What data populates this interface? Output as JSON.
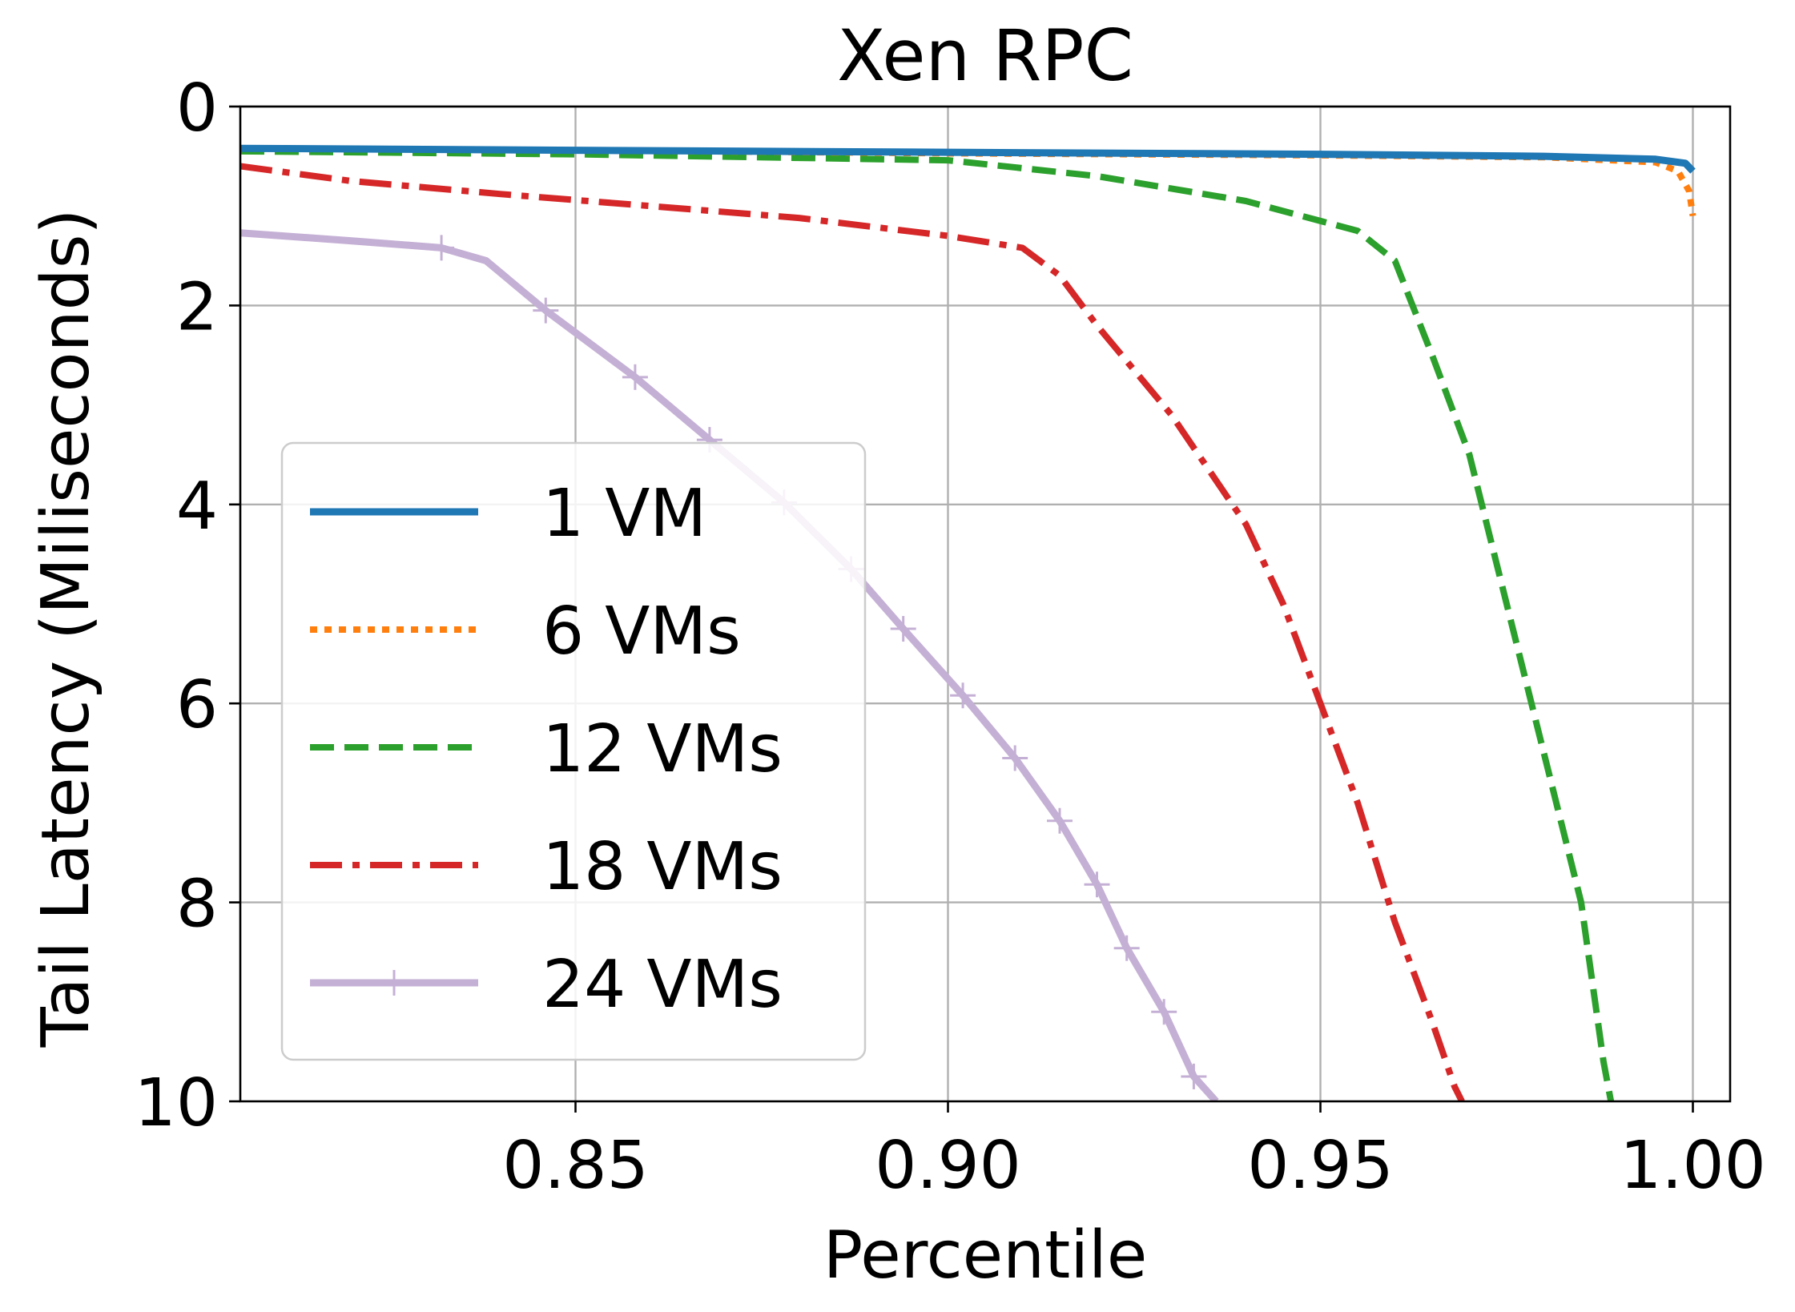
{
  "chart_data": {
    "type": "line",
    "title": "Xen RPC",
    "xlabel": "Percentile",
    "ylabel": "Tail Latency (Miliseconds)",
    "xlim": [
      0.805,
      1.005
    ],
    "ylim": [
      10,
      0
    ],
    "y_inverted": true,
    "grid": true,
    "legend_position": "center-left",
    "x_ticks": [
      0.85,
      0.9,
      0.95,
      1.0
    ],
    "x_tick_labels": [
      "0.85",
      "0.90",
      "0.95",
      "1.00"
    ],
    "y_ticks": [
      0,
      2,
      4,
      6,
      8,
      10
    ],
    "y_tick_labels": [
      "0",
      "2",
      "4",
      "6",
      "8",
      "10"
    ],
    "series": [
      {
        "name": "1 VM",
        "color": "#1f77b4",
        "style": "solid",
        "width": 9,
        "opacity": 1,
        "x": [
          0.805,
          0.85,
          0.9,
          0.95,
          0.98,
          0.995,
          0.999,
          1.0
        ],
        "y": [
          0.42,
          0.44,
          0.46,
          0.48,
          0.5,
          0.53,
          0.57,
          0.65
        ]
      },
      {
        "name": "6 VMs",
        "color": "#ff7f0e",
        "style": "dotted",
        "width": 8,
        "opacity": 1,
        "x": [
          0.805,
          0.85,
          0.9,
          0.95,
          0.98,
          0.995,
          0.998,
          0.9995,
          1.0
        ],
        "y": [
          0.42,
          0.44,
          0.47,
          0.49,
          0.51,
          0.56,
          0.65,
          0.85,
          1.1
        ]
      },
      {
        "name": "12 VMs",
        "color": "#2ca02c",
        "style": "dashed",
        "width": 8,
        "opacity": 1,
        "x": [
          0.805,
          0.85,
          0.9,
          0.92,
          0.94,
          0.955,
          0.96,
          0.965,
          0.97,
          0.975,
          0.98,
          0.985,
          0.988,
          0.989
        ],
        "y": [
          0.45,
          0.48,
          0.54,
          0.7,
          0.95,
          1.25,
          1.55,
          2.5,
          3.5,
          5.0,
          6.5,
          8.0,
          9.6,
          10.0
        ]
      },
      {
        "name": "18 VMs",
        "color": "#d62728",
        "style": "dashdot",
        "width": 8,
        "opacity": 1,
        "x": [
          0.805,
          0.82,
          0.84,
          0.86,
          0.88,
          0.9,
          0.91,
          0.915,
          0.92,
          0.93,
          0.94,
          0.945,
          0.95,
          0.955,
          0.96,
          0.965,
          0.968,
          0.969
        ],
        "y": [
          0.6,
          0.75,
          0.88,
          1.0,
          1.12,
          1.3,
          1.42,
          1.7,
          2.2,
          3.1,
          4.2,
          5.0,
          6.0,
          7.0,
          8.2,
          9.2,
          9.85,
          10.0
        ]
      },
      {
        "name": "24 VMs",
        "color": "#c5b0d5",
        "style": "solid",
        "width": 9,
        "opacity": 1,
        "marker": "plus",
        "x": [
          0.805,
          0.82,
          0.832,
          0.838,
          0.846,
          0.858,
          0.868,
          0.878,
          0.887,
          0.894,
          0.902,
          0.909,
          0.915,
          0.92,
          0.924,
          0.929,
          0.933,
          0.936
        ],
        "y": [
          1.27,
          1.35,
          1.42,
          1.55,
          2.05,
          2.72,
          3.35,
          3.98,
          4.65,
          5.25,
          5.92,
          6.55,
          7.18,
          7.82,
          8.46,
          9.1,
          9.75,
          10.0
        ],
        "marker_x": [
          0.832,
          0.846,
          0.858,
          0.868,
          0.878,
          0.887,
          0.894,
          0.902,
          0.909,
          0.915,
          0.92,
          0.924,
          0.929,
          0.933
        ],
        "marker_y": [
          1.42,
          2.05,
          2.72,
          3.35,
          3.98,
          4.65,
          5.25,
          5.92,
          6.55,
          7.18,
          7.82,
          8.46,
          9.1,
          9.75
        ]
      }
    ]
  }
}
